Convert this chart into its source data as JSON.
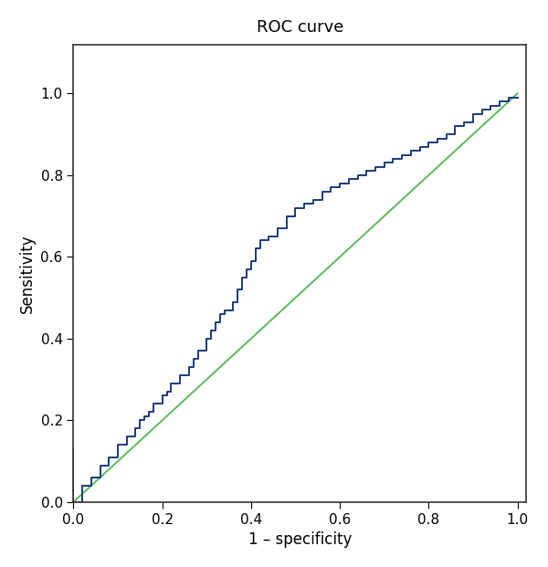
{
  "title": "ROC curve",
  "xlabel": "1 – specificity",
  "ylabel": "Sensitivity",
  "xlim": [
    0.0,
    1.02
  ],
  "ylim": [
    0.0,
    1.12
  ],
  "xticks": [
    0.0,
    0.2,
    0.4,
    0.6,
    0.8,
    1.0
  ],
  "yticks": [
    0.0,
    0.2,
    0.4,
    0.6,
    0.8,
    1.0
  ],
  "roc_color": "#1a3a7a",
  "diag_color": "#5cb85c",
  "roc_linewidth": 1.4,
  "diag_linewidth": 1.4,
  "title_fontsize": 13,
  "label_fontsize": 12,
  "tick_fontsize": 11,
  "background_color": "#ffffff",
  "roc_x": [
    0.0,
    0.0,
    0.02,
    0.02,
    0.04,
    0.04,
    0.06,
    0.06,
    0.08,
    0.08,
    0.1,
    0.1,
    0.12,
    0.12,
    0.14,
    0.14,
    0.15,
    0.15,
    0.16,
    0.16,
    0.17,
    0.17,
    0.18,
    0.18,
    0.2,
    0.2,
    0.21,
    0.21,
    0.22,
    0.22,
    0.24,
    0.24,
    0.26,
    0.26,
    0.27,
    0.27,
    0.28,
    0.28,
    0.3,
    0.3,
    0.31,
    0.31,
    0.32,
    0.32,
    0.33,
    0.33,
    0.34,
    0.34,
    0.36,
    0.36,
    0.37,
    0.37,
    0.38,
    0.38,
    0.39,
    0.39,
    0.4,
    0.4,
    0.41,
    0.41,
    0.42,
    0.42,
    0.44,
    0.44,
    0.46,
    0.46,
    0.48,
    0.48,
    0.5,
    0.5,
    0.52,
    0.52,
    0.54,
    0.54,
    0.56,
    0.56,
    0.58,
    0.58,
    0.6,
    0.6,
    0.62,
    0.62,
    0.64,
    0.64,
    0.66,
    0.66,
    0.68,
    0.68,
    0.7,
    0.7,
    0.72,
    0.72,
    0.74,
    0.74,
    0.76,
    0.76,
    0.78,
    0.78,
    0.8,
    0.8,
    0.82,
    0.82,
    0.84,
    0.84,
    0.86,
    0.86,
    0.88,
    0.88,
    0.9,
    0.9,
    0.92,
    0.92,
    0.94,
    0.94,
    0.96,
    0.96,
    0.98,
    0.98,
    1.0
  ],
  "roc_y": [
    0.13,
    0.0,
    0.0,
    0.04,
    0.04,
    0.06,
    0.06,
    0.09,
    0.09,
    0.11,
    0.11,
    0.14,
    0.14,
    0.16,
    0.16,
    0.18,
    0.18,
    0.2,
    0.2,
    0.21,
    0.21,
    0.22,
    0.22,
    0.24,
    0.24,
    0.26,
    0.26,
    0.27,
    0.27,
    0.29,
    0.29,
    0.31,
    0.31,
    0.33,
    0.33,
    0.35,
    0.35,
    0.37,
    0.37,
    0.4,
    0.4,
    0.42,
    0.42,
    0.44,
    0.44,
    0.46,
    0.46,
    0.47,
    0.47,
    0.49,
    0.49,
    0.52,
    0.52,
    0.55,
    0.55,
    0.57,
    0.57,
    0.59,
    0.59,
    0.62,
    0.62,
    0.64,
    0.64,
    0.65,
    0.65,
    0.67,
    0.67,
    0.7,
    0.7,
    0.72,
    0.72,
    0.73,
    0.73,
    0.74,
    0.74,
    0.76,
    0.76,
    0.77,
    0.77,
    0.78,
    0.78,
    0.79,
    0.79,
    0.8,
    0.8,
    0.81,
    0.81,
    0.82,
    0.82,
    0.83,
    0.83,
    0.84,
    0.84,
    0.85,
    0.85,
    0.86,
    0.86,
    0.87,
    0.87,
    0.88,
    0.88,
    0.89,
    0.89,
    0.9,
    0.9,
    0.92,
    0.92,
    0.93,
    0.93,
    0.95,
    0.95,
    0.96,
    0.96,
    0.97,
    0.97,
    0.98,
    0.98,
    0.99,
    0.99
  ]
}
